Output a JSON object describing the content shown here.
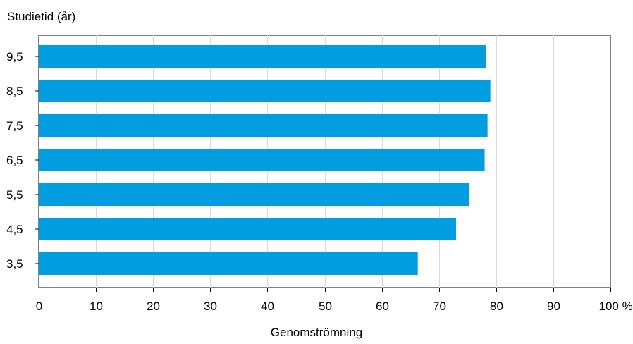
{
  "chart_data": {
    "type": "bar",
    "orientation": "horizontal",
    "categories": [
      "9,5",
      "8,5",
      "7,5",
      "6,5",
      "5,5",
      "4,5",
      "3,5"
    ],
    "values": [
      78.3,
      79.0,
      78.5,
      78.0,
      75.3,
      73.0,
      66.3
    ],
    "ylabel": "Studietid (år)",
    "xlabel": "Genomströmning",
    "xlim": [
      0,
      100
    ],
    "xticks": [
      "0",
      "10",
      "20",
      "30",
      "40",
      "50",
      "60",
      "70",
      "80",
      "90",
      "100 %"
    ],
    "grid": true,
    "bar_color": "#009ee0",
    "grid_color": "#d9d9d9",
    "axis_color": "#000000"
  }
}
